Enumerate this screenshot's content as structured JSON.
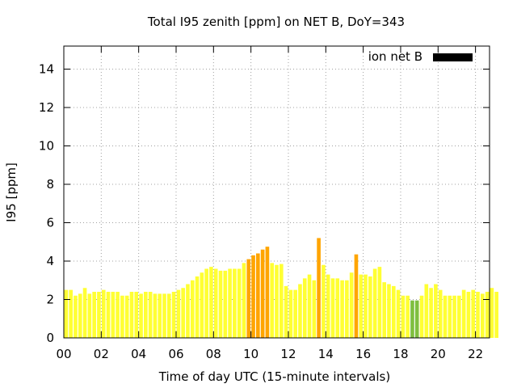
{
  "chart_data": {
    "type": "bar",
    "title": "Total I95 zenith [ppm] on NET B, DoY=343",
    "xlabel": "Time of day UTC (15-minute intervals)",
    "ylabel": "I95 [ppm]",
    "xlim": [
      0,
      22.75
    ],
    "ylim": [
      0,
      15.2
    ],
    "interval_hours": 0.25,
    "x_ticks": [
      "00",
      "02",
      "04",
      "06",
      "08",
      "10",
      "12",
      "14",
      "16",
      "18",
      "20",
      "22"
    ],
    "y_ticks": [
      "0",
      "2",
      "4",
      "6",
      "8",
      "10",
      "12",
      "14"
    ],
    "grid": true,
    "legend": {
      "label": "ion net B",
      "position": "top-right",
      "color": "#000000"
    },
    "colors": {
      "yellow": "#ffff33",
      "orange": "#ffa500",
      "green": "#7fbf3f"
    },
    "values": [
      2.5,
      2.5,
      2.2,
      2.3,
      2.6,
      2.3,
      2.4,
      2.4,
      2.5,
      2.4,
      2.4,
      2.4,
      2.2,
      2.2,
      2.4,
      2.4,
      2.3,
      2.4,
      2.4,
      2.3,
      2.3,
      2.3,
      2.3,
      2.4,
      2.5,
      2.6,
      2.8,
      3.0,
      3.2,
      3.4,
      3.6,
      3.7,
      3.6,
      3.5,
      3.5,
      3.6,
      3.6,
      3.6,
      3.9,
      4.1,
      4.3,
      4.4,
      4.6,
      4.75,
      3.9,
      3.8,
      3.85,
      2.7,
      2.5,
      2.5,
      2.8,
      3.1,
      3.3,
      3.0,
      5.2,
      3.8,
      3.3,
      3.1,
      3.1,
      3.0,
      3.0,
      3.4,
      4.35,
      3.3,
      3.3,
      3.2,
      3.6,
      3.7,
      2.9,
      2.8,
      2.7,
      2.5,
      2.2,
      2.2,
      1.95,
      1.95,
      2.2,
      2.8,
      2.6,
      2.8,
      2.5,
      2.2,
      2.2,
      2.2,
      2.2,
      2.5,
      2.4,
      2.5,
      2.4,
      2.3,
      2.4,
      2.6,
      2.4
    ],
    "bar_colors": [
      "yellow",
      "yellow",
      "yellow",
      "yellow",
      "yellow",
      "yellow",
      "yellow",
      "yellow",
      "yellow",
      "yellow",
      "yellow",
      "yellow",
      "yellow",
      "yellow",
      "yellow",
      "yellow",
      "yellow",
      "yellow",
      "yellow",
      "yellow",
      "yellow",
      "yellow",
      "yellow",
      "yellow",
      "yellow",
      "yellow",
      "yellow",
      "yellow",
      "yellow",
      "yellow",
      "yellow",
      "yellow",
      "yellow",
      "yellow",
      "yellow",
      "yellow",
      "yellow",
      "yellow",
      "yellow",
      "orange",
      "orange",
      "orange",
      "orange",
      "orange",
      "yellow",
      "yellow",
      "yellow",
      "yellow",
      "yellow",
      "yellow",
      "yellow",
      "yellow",
      "yellow",
      "yellow",
      "orange",
      "yellow",
      "yellow",
      "yellow",
      "yellow",
      "yellow",
      "yellow",
      "yellow",
      "orange",
      "yellow",
      "yellow",
      "yellow",
      "yellow",
      "yellow",
      "yellow",
      "yellow",
      "yellow",
      "yellow",
      "yellow",
      "yellow",
      "green",
      "green",
      "yellow",
      "yellow",
      "yellow",
      "yellow",
      "yellow",
      "yellow",
      "yellow",
      "yellow",
      "yellow",
      "yellow",
      "yellow",
      "yellow",
      "yellow",
      "yellow",
      "yellow",
      "yellow",
      "yellow"
    ]
  }
}
